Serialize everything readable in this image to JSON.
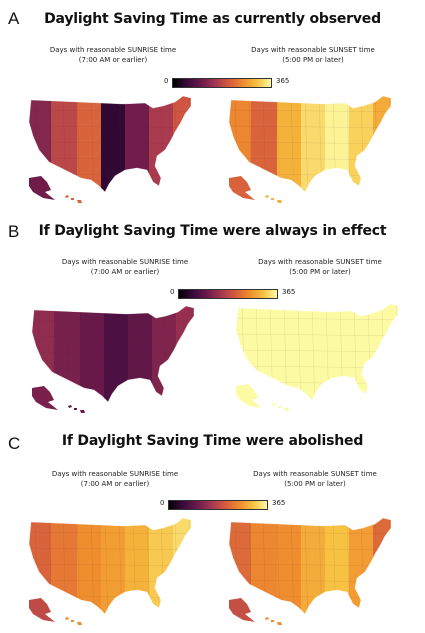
{
  "colors": {
    "scale": [
      "#000000",
      "#3a0a3d",
      "#6a1a4a",
      "#a23652",
      "#d45a3e",
      "#ef8b2e",
      "#f7c040",
      "#fcfba4"
    ],
    "background": "#ffffff"
  },
  "colorbar": {
    "min_label": "0",
    "max_label": "365"
  },
  "panels": [
    {
      "letter": "A",
      "title": "Daylight Saving Time as currently observed",
      "left_caption": "Days with reasonable SUNRISE time\n(7:00 AM or earlier)",
      "right_caption": "Days with reasonable SUNSET time\n(5:00 PM or later)",
      "sunrise_levels": [
        0.35,
        0.5,
        0.6,
        0.12,
        0.3,
        0.45,
        0.55
      ],
      "sunset_levels": [
        0.7,
        0.6,
        0.82,
        0.92,
        0.98,
        0.9,
        0.8
      ]
    },
    {
      "letter": "B",
      "title": "If Daylight Saving Time were always in effect",
      "left_caption": "Days with reasonable SUNRISE time\n(7:00 AM or earlier)",
      "right_caption": "Days with reasonable SUNSET time\n(5:00 PM or later)",
      "sunrise_levels": [
        0.38,
        0.32,
        0.28,
        0.2,
        0.26,
        0.34,
        0.4
      ],
      "sunset_levels": [
        1.0,
        1.0,
        1.0,
        1.0,
        1.0,
        1.0,
        1.0
      ]
    },
    {
      "letter": "C",
      "title": "If Daylight Saving Time were abolished",
      "left_caption": "Days with reasonable SUNRISE time\n(7:00 AM or earlier)",
      "right_caption": "Days with reasonable SUNSET time\n(5:00 PM or later)",
      "sunrise_levels": [
        0.6,
        0.66,
        0.72,
        0.76,
        0.82,
        0.88,
        0.92
      ],
      "sunset_levels": [
        0.62,
        0.7,
        0.72,
        0.8,
        0.86,
        0.76,
        0.62
      ]
    }
  ]
}
